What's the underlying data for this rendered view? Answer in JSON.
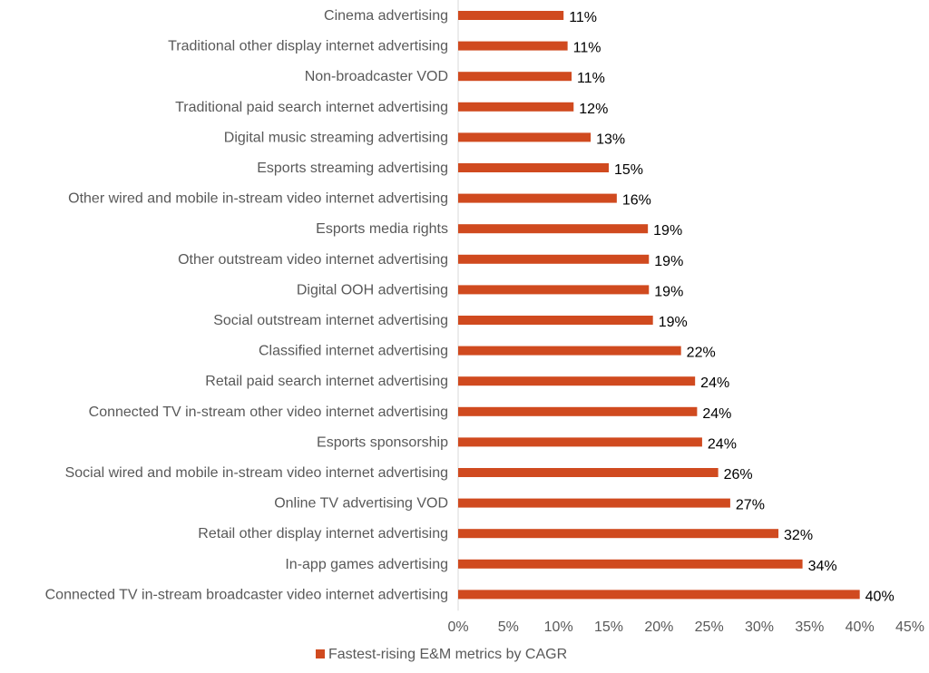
{
  "chart_data": {
    "type": "bar",
    "orientation": "horizontal",
    "categories": [
      "Cinema advertising",
      "Traditional other display internet advertising",
      "Non-broadcaster VOD",
      "Traditional paid search internet advertising",
      "Digital music streaming advertising",
      "Esports streaming advertising",
      "Other wired and mobile in-stream video internet advertising",
      "Esports media rights",
      "Other outstream video internet advertising",
      "Digital OOH advertising",
      "Social outstream internet advertising",
      "Classified internet advertising",
      "Retail paid search internet advertising",
      "Connected TV in-stream other video internet advertising",
      "Esports sponsorship",
      "Social wired and mobile in-stream video internet advertising",
      "Online TV advertising VOD",
      "Retail other display internet advertising",
      "In-app games advertising",
      "Connected TV in-stream broadcaster video internet advertising"
    ],
    "values": [
      10.5,
      10.9,
      11.3,
      11.5,
      13.2,
      15.0,
      15.8,
      18.9,
      19.0,
      19.0,
      19.4,
      22.2,
      23.6,
      23.8,
      24.3,
      25.9,
      27.1,
      31.9,
      34.3,
      40.0
    ],
    "value_labels": [
      "11%",
      "11%",
      "11%",
      "12%",
      "13%",
      "15%",
      "16%",
      "19%",
      "19%",
      "19%",
      "19%",
      "22%",
      "24%",
      "24%",
      "24%",
      "26%",
      "27%",
      "32%",
      "34%",
      "40%"
    ],
    "series": [
      {
        "name": "Fastest-rising E&M metrics by CAGR",
        "color": "#D04A1F"
      }
    ],
    "xlim": [
      0,
      45
    ],
    "x_ticks": [
      "0%",
      "5%",
      "10%",
      "15%",
      "20%",
      "25%",
      "30%",
      "35%",
      "40%",
      "45%"
    ],
    "x_tick_values": [
      0,
      5,
      10,
      15,
      20,
      25,
      30,
      35,
      40,
      45
    ],
    "title": "",
    "xlabel": "",
    "ylabel": "",
    "grid": false,
    "legend_position": "bottom"
  }
}
